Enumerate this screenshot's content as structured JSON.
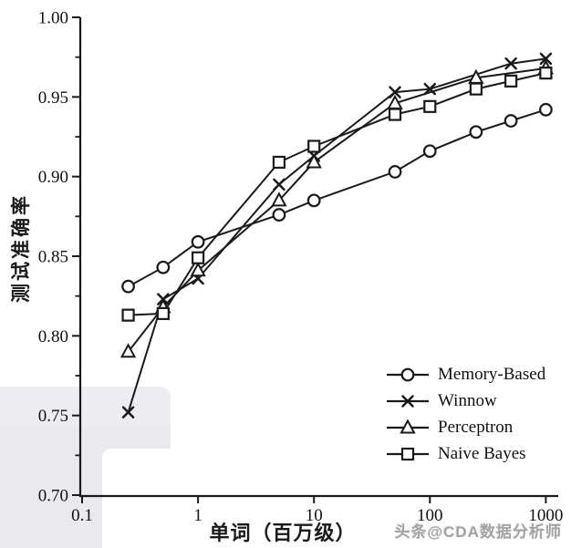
{
  "watermark": {
    "brand_text": "头条@CDA数据分析师"
  },
  "chart_data": {
    "type": "line",
    "title": "",
    "xlabel": "单词（百万级）",
    "ylabel": "测试准确率",
    "x_scale": "log",
    "xlim": [
      0.1,
      1000
    ],
    "ylim": [
      0.7,
      1.0
    ],
    "grid": false,
    "legend_position": "lower right inside plot",
    "line_color": "#1a1a1a",
    "x_ticks": [
      {
        "v": 0.1,
        "label": "0.1"
      },
      {
        "v": 1,
        "label": "1"
      },
      {
        "v": 10,
        "label": "10"
      },
      {
        "v": 100,
        "label": "100"
      },
      {
        "v": 1000,
        "label": "1000"
      }
    ],
    "y_ticks": [
      {
        "v": 0.7,
        "label": "0.70"
      },
      {
        "v": 0.75,
        "label": "0.75"
      },
      {
        "v": 0.8,
        "label": "0.80"
      },
      {
        "v": 0.85,
        "label": "0.85"
      },
      {
        "v": 0.9,
        "label": "0.90"
      },
      {
        "v": 0.95,
        "label": "0.95"
      },
      {
        "v": 1.0,
        "label": "1.00"
      }
    ],
    "y_minor_ticks": [
      0.725,
      0.775,
      0.825,
      0.875,
      0.925,
      0.975
    ],
    "series": [
      {
        "name": "Memory-Based",
        "marker": "circle",
        "points": [
          [
            0.25,
            0.831
          ],
          [
            0.5,
            0.843
          ],
          [
            1,
            0.859
          ],
          [
            5,
            0.876
          ],
          [
            10,
            0.885
          ],
          [
            50,
            0.903
          ],
          [
            100,
            0.916
          ],
          [
            250,
            0.928
          ],
          [
            500,
            0.935
          ],
          [
            1000,
            0.942
          ]
        ]
      },
      {
        "name": "Winnow",
        "marker": "x",
        "points": [
          [
            0.25,
            0.752
          ],
          [
            0.5,
            0.823
          ],
          [
            1,
            0.836
          ],
          [
            5,
            0.895
          ],
          [
            10,
            0.913
          ],
          [
            50,
            0.953
          ],
          [
            100,
            0.955
          ],
          [
            500,
            0.971
          ],
          [
            1000,
            0.974
          ]
        ]
      },
      {
        "name": "Perceptron",
        "marker": "triangle",
        "points": [
          [
            0.25,
            0.79
          ],
          [
            0.5,
            0.818
          ],
          [
            1,
            0.841
          ],
          [
            5,
            0.885
          ],
          [
            10,
            0.909
          ],
          [
            50,
            0.946
          ],
          [
            250,
            0.962
          ],
          [
            1000,
            0.968
          ]
        ]
      },
      {
        "name": "Naive Bayes",
        "marker": "square",
        "points": [
          [
            0.25,
            0.813
          ],
          [
            0.5,
            0.814
          ],
          [
            1,
            0.849
          ],
          [
            5,
            0.909
          ],
          [
            10,
            0.919
          ],
          [
            50,
            0.939
          ],
          [
            100,
            0.944
          ],
          [
            250,
            0.955
          ],
          [
            500,
            0.96
          ],
          [
            1000,
            0.965
          ]
        ]
      }
    ]
  }
}
